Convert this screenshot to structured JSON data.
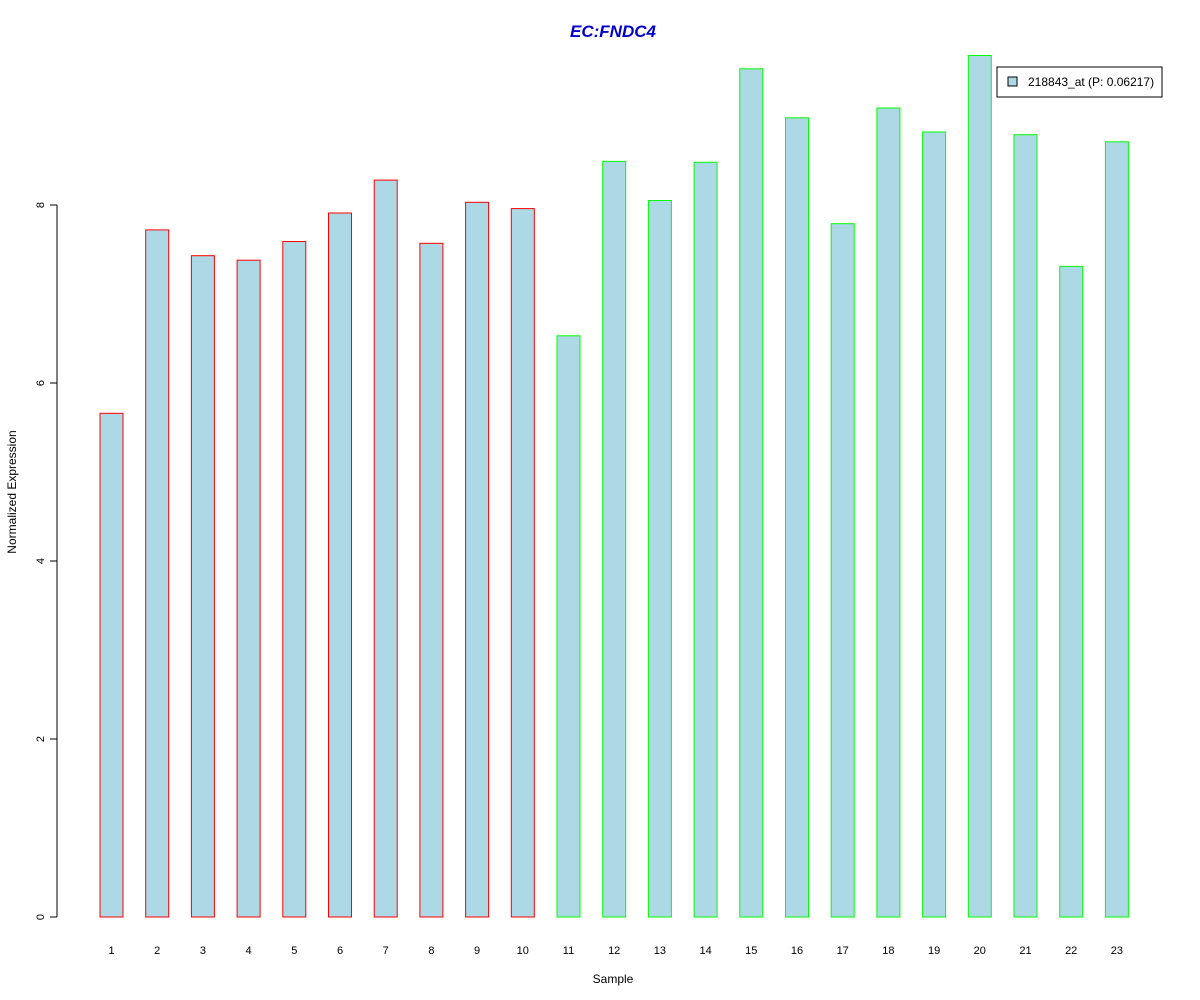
{
  "chart_data": {
    "type": "bar",
    "title": "EC:FNDC4",
    "xlabel": "Sample",
    "ylabel": "Normalized Expression",
    "categories": [
      "1",
      "2",
      "3",
      "4",
      "5",
      "6",
      "7",
      "8",
      "9",
      "10",
      "11",
      "12",
      "13",
      "14",
      "15",
      "16",
      "17",
      "18",
      "19",
      "20",
      "21",
      "22",
      "23"
    ],
    "values": [
      5.66,
      7.72,
      7.43,
      7.38,
      7.59,
      7.91,
      8.28,
      7.57,
      8.03,
      7.96,
      6.53,
      8.49,
      8.05,
      8.48,
      9.53,
      8.98,
      7.79,
      9.09,
      8.82,
      9.68,
      8.79,
      7.31,
      8.71
    ],
    "groups": [
      "red",
      "red",
      "red",
      "red",
      "red",
      "red",
      "red",
      "red",
      "red",
      "red",
      "green",
      "green",
      "green",
      "green",
      "green",
      "green",
      "green",
      "green",
      "green",
      "green",
      "green",
      "green",
      "green"
    ],
    "yticks": [
      "0",
      "2",
      "4",
      "6",
      "8"
    ],
    "ylim": [
      0,
      9.7
    ],
    "grid": false,
    "legend": {
      "position": "top-right",
      "entries": [
        "218843_at (P: 0.06217)"
      ]
    },
    "colors": {
      "fill": "#add8e6",
      "border_group_1": "#ff0000",
      "border_group_2": "#00ff00",
      "title": "#0000cc",
      "axis": "#000000"
    }
  }
}
